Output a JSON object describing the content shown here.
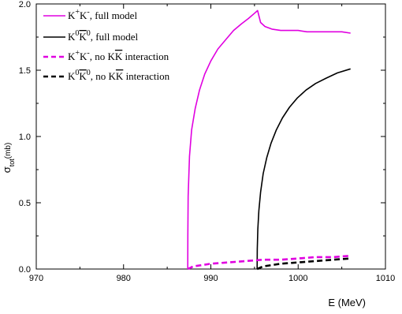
{
  "chart_data": {
    "type": "line",
    "xlabel": "E (MeV)",
    "ylabel": "σ_tot(mb)",
    "ylabel_main": "σ",
    "ylabel_sub": "tot",
    "ylabel_unit": "(mb)",
    "xlim": [
      970,
      1010
    ],
    "ylim": [
      0,
      2
    ],
    "x_ticks": [
      "970",
      "980",
      "990",
      "1000",
      "1010"
    ],
    "y_ticks": [
      "0.0",
      "0.5",
      "1.0",
      "1.5",
      "2.0"
    ],
    "grid": false,
    "legend_position": "top-left",
    "series": [
      {
        "name": "K⁺K⁻, full model",
        "color": "#e000e0",
        "dash": "solid",
        "x": [
          987.35,
          987.36,
          987.4,
          987.55,
          987.8,
          988.2,
          988.7,
          989.3,
          990.0,
          990.8,
          991.7,
          992.6,
          993.5,
          994.3,
          995.0,
          995.35,
          995.7,
          996.2,
          997.0,
          998.0,
          999.0,
          1000.0,
          1001.0,
          1002.0,
          1003.0,
          1004.0,
          1005.0,
          1006.0
        ],
        "y": [
          0.0,
          0.25,
          0.55,
          0.85,
          1.05,
          1.21,
          1.35,
          1.47,
          1.57,
          1.66,
          1.73,
          1.8,
          1.85,
          1.89,
          1.93,
          1.95,
          1.86,
          1.83,
          1.81,
          1.8,
          1.8,
          1.8,
          1.79,
          1.79,
          1.79,
          1.79,
          1.79,
          1.78
        ]
      },
      {
        "name": "K⁰K̄⁰, full model",
        "color": "#000000",
        "dash": "solid",
        "x": [
          995.3,
          995.32,
          995.38,
          995.5,
          995.7,
          996.0,
          996.4,
          996.9,
          997.5,
          998.2,
          999.0,
          999.9,
          1000.9,
          1002.0,
          1003.2,
          1004.5,
          1006.0
        ],
        "y": [
          0.0,
          0.15,
          0.3,
          0.44,
          0.58,
          0.72,
          0.84,
          0.95,
          1.05,
          1.14,
          1.22,
          1.29,
          1.35,
          1.4,
          1.44,
          1.48,
          1.51
        ]
      },
      {
        "name": "K⁺K⁻, no KK̄ interaction",
        "color": "#e000e0",
        "dash": "dashed",
        "x": [
          987.35,
          988.0,
          989.0,
          990.0,
          992.0,
          994.0,
          996.0,
          998.0,
          1000.0,
          1002.0,
          1004.0,
          1006.0
        ],
        "y": [
          0.0,
          0.02,
          0.03,
          0.04,
          0.05,
          0.06,
          0.07,
          0.07,
          0.08,
          0.09,
          0.09,
          0.1
        ]
      },
      {
        "name": "K⁰K̄⁰, no KK̄ interaction",
        "color": "#000000",
        "dash": "dashed",
        "x": [
          995.3,
          996.0,
          997.0,
          998.0,
          1000.0,
          1002.0,
          1004.0,
          1006.0
        ],
        "y": [
          0.0,
          0.02,
          0.03,
          0.04,
          0.05,
          0.06,
          0.07,
          0.08
        ]
      }
    ],
    "legend": [
      {
        "base": "K",
        "s1": "+",
        "mid": "K",
        "s2": "-",
        "text": ", full model",
        "bar": false
      },
      {
        "base": "K",
        "s1": "0",
        "mid": "K",
        "s2": "0",
        "text": ", full model",
        "bar": true
      },
      {
        "base": "K",
        "s1": "+",
        "mid": "K",
        "s2": "-",
        "text": ", no KK interaction",
        "bar": false
      },
      {
        "base": "K",
        "s1": "0",
        "mid": "K",
        "s2": "0",
        "text": ", no KK interaction",
        "bar": true
      }
    ]
  }
}
